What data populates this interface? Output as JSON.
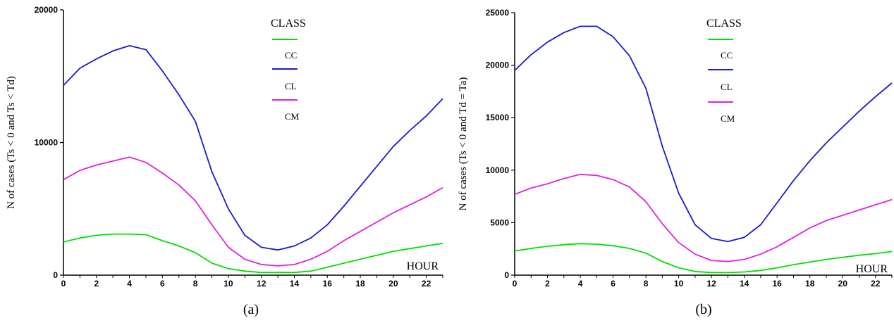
{
  "chart_data": [
    {
      "type": "line",
      "caption": "(a)",
      "ylabel": "N of cases (Ts < 0 and Ts < Td)",
      "xlabel": "HOUR",
      "xlim": [
        0,
        23
      ],
      "ylim": [
        0,
        20000
      ],
      "xticks": [
        0,
        2,
        4,
        6,
        8,
        10,
        12,
        14,
        16,
        18,
        20,
        22
      ],
      "yticks": [
        0,
        10000,
        20000
      ],
      "legend": {
        "title": "CLASS",
        "placement": "top-center"
      },
      "x": [
        0,
        1,
        2,
        3,
        4,
        5,
        6,
        7,
        8,
        9,
        10,
        11,
        12,
        13,
        14,
        15,
        16,
        17,
        18,
        19,
        20,
        21,
        22,
        23
      ],
      "series": [
        {
          "name": "CC",
          "color": "#00e000",
          "values": [
            2500,
            2800,
            3000,
            3100,
            3100,
            3050,
            2600,
            2200,
            1700,
            900,
            500,
            300,
            200,
            200,
            200,
            300,
            600,
            900,
            1200,
            1500,
            1800,
            2000,
            2200,
            2400
          ]
        },
        {
          "name": "CL",
          "color": "#1a1acc",
          "values": [
            14300,
            15600,
            16300,
            16900,
            17300,
            17000,
            15400,
            13600,
            11600,
            7800,
            5000,
            3000,
            2100,
            1900,
            2200,
            2800,
            3800,
            5200,
            6700,
            8200,
            9700,
            10900,
            12000,
            13300
          ]
        },
        {
          "name": "CM",
          "color": "#e020e0",
          "values": [
            7200,
            7900,
            8300,
            8600,
            8900,
            8500,
            7700,
            6800,
            5600,
            3800,
            2100,
            1200,
            800,
            700,
            800,
            1200,
            1800,
            2600,
            3300,
            4000,
            4700,
            5300,
            5900,
            6600
          ]
        }
      ]
    },
    {
      "type": "line",
      "caption": "(b)",
      "ylabel": "N of cases (Ts < 0 and Td = Ta)",
      "xlabel": "HOUR",
      "xlim": [
        0,
        23
      ],
      "ylim": [
        0,
        25000
      ],
      "xticks": [
        0,
        2,
        4,
        6,
        8,
        10,
        12,
        14,
        16,
        18,
        20,
        22
      ],
      "yticks": [
        0,
        5000,
        10000,
        15000,
        20000,
        25000
      ],
      "legend": {
        "title": "CLASS",
        "placement": "top-center"
      },
      "x": [
        0,
        1,
        2,
        3,
        4,
        5,
        6,
        7,
        8,
        9,
        10,
        11,
        12,
        13,
        14,
        15,
        16,
        17,
        18,
        19,
        20,
        21,
        22,
        23
      ],
      "series": [
        {
          "name": "CC",
          "color": "#00e000",
          "values": [
            2300,
            2550,
            2750,
            2900,
            3000,
            2950,
            2800,
            2550,
            2100,
            1300,
            700,
            350,
            250,
            250,
            300,
            450,
            700,
            1000,
            1250,
            1500,
            1700,
            1900,
            2050,
            2250
          ]
        },
        {
          "name": "CL",
          "color": "#1a1acc",
          "values": [
            19500,
            21000,
            22200,
            23100,
            23700,
            23700,
            22700,
            20900,
            17800,
            12300,
            7800,
            4800,
            3500,
            3200,
            3600,
            4800,
            6900,
            9000,
            10900,
            12600,
            14100,
            15600,
            17000,
            18300
          ]
        },
        {
          "name": "CM",
          "color": "#e020e0",
          "values": [
            7700,
            8300,
            8700,
            9200,
            9600,
            9500,
            9100,
            8400,
            7000,
            4900,
            3100,
            2000,
            1400,
            1300,
            1500,
            2000,
            2700,
            3600,
            4500,
            5200,
            5700,
            6200,
            6700,
            7200
          ]
        }
      ]
    }
  ]
}
